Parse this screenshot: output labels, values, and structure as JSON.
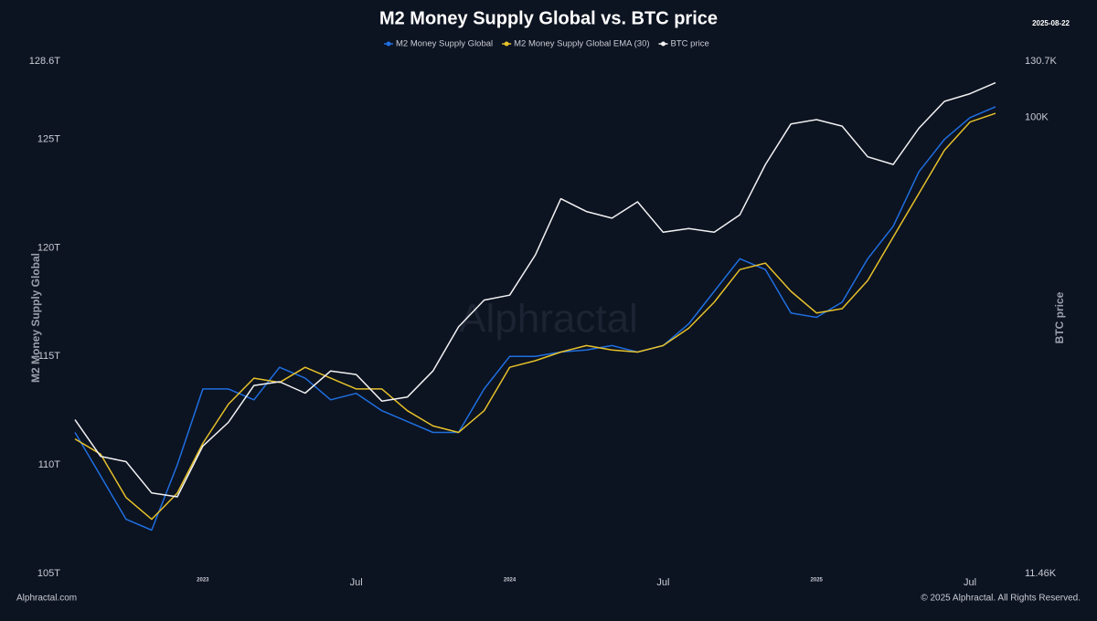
{
  "chart_data": {
    "type": "line",
    "title": "M2 Money Supply Global vs. BTC price",
    "date": "2025-08-22",
    "y_label": "M2 Money Supply Global",
    "y2_label": "BTC price",
    "watermark": "Alphractal",
    "source": "Alphractal.com",
    "copyright": "© 2025 Alphractal. All Rights Reserved.",
    "y2_log": true,
    "x": [
      "2022-08",
      "2022-09",
      "2022-10",
      "2022-11",
      "2022-12",
      "2023-01",
      "2023-02",
      "2023-03",
      "2023-04",
      "2023-05",
      "2023-06",
      "2023-07",
      "2023-08",
      "2023-09",
      "2023-10",
      "2023-11",
      "2023-12",
      "2024-01",
      "2024-02",
      "2024-03",
      "2024-04",
      "2024-05",
      "2024-06",
      "2024-07",
      "2024-08",
      "2024-09",
      "2024-10",
      "2024-11",
      "2024-12",
      "2025-01",
      "2025-02",
      "2025-03",
      "2025-04",
      "2025-05",
      "2025-06",
      "2025-07",
      "2025-08"
    ],
    "xlim": [
      "2022-08",
      "2025-09"
    ],
    "xticks": [
      {
        "value": "2023-01",
        "label": "2023"
      },
      {
        "value": "2023-07",
        "label": "Jul"
      },
      {
        "value": "2024-01",
        "label": "2024"
      },
      {
        "value": "2024-07",
        "label": "Jul"
      },
      {
        "value": "2025-01",
        "label": "2025"
      },
      {
        "value": "2025-07",
        "label": "Jul"
      }
    ],
    "ylim": [
      105,
      128.6
    ],
    "yticks": [
      {
        "value": 105,
        "label": "105T"
      },
      {
        "value": 110,
        "label": "110T"
      },
      {
        "value": 115,
        "label": "115T"
      },
      {
        "value": 120,
        "label": "120T"
      },
      {
        "value": 125,
        "label": "125T"
      },
      {
        "value": 128.6,
        "label": "128.6T"
      }
    ],
    "y2lim": [
      11.46,
      130.7
    ],
    "y2ticks": [
      {
        "value": 11.46,
        "label": "11.46K"
      },
      {
        "value": 100,
        "label": "100K"
      },
      {
        "value": 130.7,
        "label": "130.7K"
      }
    ],
    "series": [
      {
        "name": "M2 Money Supply Global",
        "color": "#1f6fe0",
        "values": [
          111.5,
          109.5,
          107.5,
          107,
          110,
          113.5,
          113.5,
          113,
          114.5,
          114,
          113,
          113.3,
          112.5,
          112,
          111.5,
          111.5,
          113.5,
          115,
          115,
          115.2,
          115.3,
          115.5,
          115.2,
          115.5,
          116.5,
          118,
          119.5,
          119,
          117,
          116.8,
          117.5,
          119.5,
          121,
          123.5,
          125,
          126,
          126.5
        ]
      },
      {
        "name": "M2 Money Supply Global EMA (30)",
        "color": "#e6c12a",
        "values": [
          111.2,
          110.5,
          108.5,
          107.5,
          108.7,
          111,
          112.8,
          114,
          113.8,
          114.5,
          114,
          113.5,
          113.5,
          112.5,
          111.8,
          111.5,
          112.5,
          114.5,
          114.8,
          115.2,
          115.5,
          115.3,
          115.2,
          115.5,
          116.3,
          117.5,
          119,
          119.3,
          118,
          117,
          117.2,
          118.5,
          120.5,
          122.5,
          124.5,
          125.8,
          126.2
        ]
      },
      {
        "name": "BTC price",
        "color": "#f2f2f2",
        "axis": "y2",
        "values": [
          23.8,
          20,
          19.5,
          16.8,
          16.5,
          21,
          23.5,
          28,
          28.5,
          27,
          30,
          29.5,
          26,
          26.5,
          30,
          37,
          42,
          43,
          52,
          68,
          64,
          62,
          67,
          58,
          59,
          58,
          63,
          80,
          97,
          99,
          96,
          83,
          80,
          95,
          108,
          112,
          118
        ]
      }
    ]
  }
}
